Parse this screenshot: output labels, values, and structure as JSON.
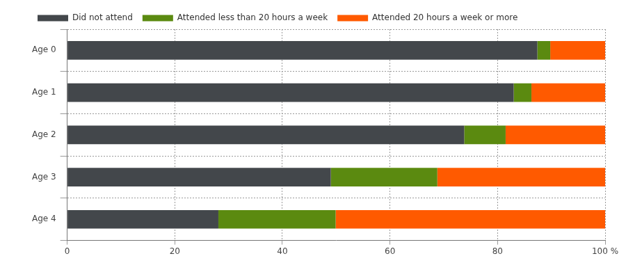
{
  "chart_data": {
    "type": "bar",
    "orientation": "horizontal",
    "stacked": true,
    "grid": true,
    "legend": "top",
    "categories": [
      "Age 0",
      "Age 1",
      "Age 2",
      "Age 3",
      "Age 4"
    ],
    "series": [
      {
        "name": "Did not attend",
        "color": "#43474b",
        "values": [
          87.4,
          83.0,
          73.8,
          49.0,
          28.1
        ]
      },
      {
        "name": "Attended less than 20 hours a week",
        "color": "#5b8a10",
        "values": [
          2.4,
          3.3,
          7.7,
          19.8,
          21.8
        ]
      },
      {
        "name": "Attended 20 hours a week or more",
        "color": "#ff5a00",
        "values": [
          10.2,
          13.7,
          18.5,
          31.2,
          50.1
        ]
      }
    ],
    "xlim": [
      0,
      100
    ],
    "xticks": [
      0,
      20,
      40,
      60,
      80,
      {
        "value": 100,
        "label": "100 %"
      }
    ]
  }
}
